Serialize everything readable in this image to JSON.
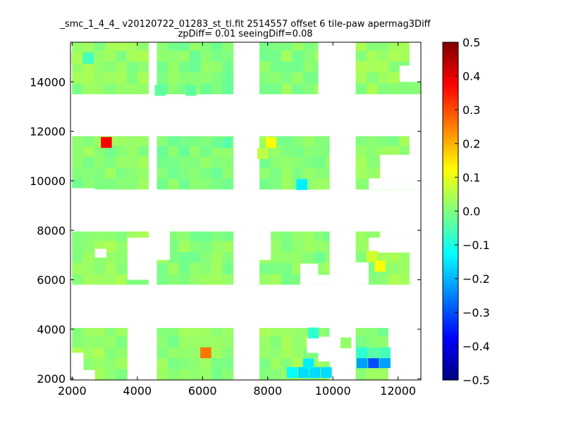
{
  "chart_data": {
    "type": "heatmap",
    "title": "_smc_1_4_4_ v20120722_01283_st_tl.fit 2514557 offset 6 tile-paw apermag3Diff",
    "subtitle": "zpDiff= 0.01 seeingDiff=0.08",
    "xlim": [
      1950,
      12700
    ],
    "ylim": [
      1950,
      15600
    ],
    "xticks": [
      "2000",
      "4000",
      "6000",
      "8000",
      "10000",
      "12000"
    ],
    "yticks": [
      "2000",
      "4000",
      "6000",
      "8000",
      "10000",
      "12000",
      "14000"
    ],
    "cell_size": [
      335,
      440
    ],
    "colorbar": {
      "range": [
        -0.5,
        0.5
      ],
      "ticks": [
        "0.5",
        "0.4",
        "0.3",
        "0.2",
        "0.1",
        "0.0",
        "−0.1",
        "−0.2",
        "−0.3",
        "−0.4",
        "−0.5"
      ],
      "colormap": "jet"
    },
    "regions": [
      {
        "x0": 2000,
        "x1": 4350,
        "y0": 13500,
        "y1": 15600,
        "value": 0.02
      },
      {
        "x0": 4600,
        "x1": 6950,
        "y0": 13500,
        "y1": 15600,
        "value": 0.0
      },
      {
        "x0": 7750,
        "x1": 9550,
        "y0": 13500,
        "y1": 15600,
        "value": 0.01
      },
      {
        "x0": 10700,
        "x1": 12700,
        "y0": 13500,
        "y1": 15600,
        "value": 0.02
      },
      {
        "x0": 2000,
        "x1": 4350,
        "y0": 9650,
        "y1": 11800,
        "value": 0.01
      },
      {
        "x0": 4600,
        "x1": 6950,
        "y0": 9650,
        "y1": 11800,
        "value": 0.0
      },
      {
        "x0": 7750,
        "x1": 9900,
        "y0": 9650,
        "y1": 11800,
        "value": 0.01
      },
      {
        "x0": 10700,
        "x1": 12700,
        "y0": 9650,
        "y1": 11800,
        "value": 0.02
      },
      {
        "x0": 2000,
        "x1": 4350,
        "y0": 5800,
        "y1": 7950,
        "value": 0.02
      },
      {
        "x0": 4600,
        "x1": 6950,
        "y0": 5800,
        "y1": 7950,
        "value": 0.01
      },
      {
        "x0": 7750,
        "x1": 9900,
        "y0": 5800,
        "y1": 7950,
        "value": 0.01
      },
      {
        "x0": 10700,
        "x1": 12700,
        "y0": 5800,
        "y1": 7950,
        "value": 0.02
      },
      {
        "x0": 2000,
        "x1": 3700,
        "y0": 1950,
        "y1": 4050,
        "value": 0.02
      },
      {
        "x0": 4600,
        "x1": 6950,
        "y0": 1950,
        "y1": 4050,
        "value": 0.01
      },
      {
        "x0": 7750,
        "x1": 9900,
        "y0": 1950,
        "y1": 4050,
        "value": 0.02
      },
      {
        "x0": 10700,
        "x1": 11700,
        "y0": 1950,
        "y1": 4050,
        "value": 0.01
      }
    ],
    "holes": [
      {
        "x0": 4350,
        "x1": 4600,
        "y0": 11100,
        "y1": 11800
      },
      {
        "x0": 2700,
        "x1": 3050,
        "y0": 6900,
        "y1": 7250
      },
      {
        "x0": 3700,
        "x1": 4350,
        "y0": 6000,
        "y1": 7700
      },
      {
        "x0": 4600,
        "x1": 5000,
        "y0": 6800,
        "y1": 7950
      },
      {
        "x0": 7750,
        "x1": 8100,
        "y0": 6800,
        "y1": 7950
      },
      {
        "x0": 9000,
        "x1": 9550,
        "y0": 5800,
        "y1": 6650
      },
      {
        "x0": 9550,
        "x1": 9900,
        "y0": 5800,
        "y1": 6200
      },
      {
        "x0": 11100,
        "x1": 12700,
        "y0": 7100,
        "y1": 7700
      },
      {
        "x0": 11450,
        "x1": 12700,
        "y0": 7700,
        "y1": 7950
      },
      {
        "x0": 10700,
        "x1": 11100,
        "y0": 5800,
        "y1": 6700
      },
      {
        "x0": 12350,
        "x1": 12700,
        "y0": 5800,
        "y1": 7100
      },
      {
        "x0": 2000,
        "x1": 2350,
        "y0": 1950,
        "y1": 3050
      },
      {
        "x0": 2000,
        "x1": 2700,
        "y0": 1950,
        "y1": 2350
      },
      {
        "x0": 3700,
        "x1": 4350,
        "y0": 1950,
        "y1": 3700
      },
      {
        "x0": 9550,
        "x1": 9900,
        "y0": 2700,
        "y1": 3700
      },
      {
        "x0": 9200,
        "x1": 9550,
        "y0": 3050,
        "y1": 3700
      },
      {
        "x0": 9900,
        "x1": 10700,
        "y0": 1950,
        "y1": 4050
      },
      {
        "x0": 11700,
        "x1": 12700,
        "y0": 1950,
        "y1": 4050
      },
      {
        "x0": 12350,
        "x1": 12700,
        "y0": 14650,
        "y1": 15600
      },
      {
        "x0": 12050,
        "x1": 12700,
        "y0": 14000,
        "y1": 14650
      },
      {
        "x0": 11100,
        "x1": 12700,
        "y0": 9650,
        "y1": 10100
      },
      {
        "x0": 11450,
        "x1": 12700,
        "y0": 10100,
        "y1": 11050
      },
      {
        "x0": 12350,
        "x1": 12700,
        "y0": 11050,
        "y1": 11800
      },
      {
        "x0": 2000,
        "x1": 2700,
        "y0": 9650,
        "y1": 9700
      }
    ],
    "highlights": [
      {
        "x": 2500,
        "y": 14950,
        "value": -0.06
      },
      {
        "x": 2150,
        "y": 14950,
        "value": 0.04
      },
      {
        "x": 3050,
        "y": 11550,
        "value": 0.38
      },
      {
        "x": 8100,
        "y": 11550,
        "value": 0.12
      },
      {
        "x": 7850,
        "y": 11100,
        "value": 0.06
      },
      {
        "x": 9050,
        "y": 9850,
        "value": -0.14
      },
      {
        "x": 11200,
        "y": 6950,
        "value": 0.08
      },
      {
        "x": 11450,
        "y": 6550,
        "value": 0.12
      },
      {
        "x": 6100,
        "y": 3050,
        "value": 0.26
      },
      {
        "x": 9400,
        "y": 3850,
        "value": -0.08
      },
      {
        "x": 8750,
        "y": 2250,
        "value": -0.12
      },
      {
        "x": 9100,
        "y": 2250,
        "value": -0.16
      },
      {
        "x": 9450,
        "y": 2250,
        "value": -0.16
      },
      {
        "x": 9800,
        "y": 2250,
        "value": -0.16
      },
      {
        "x": 9250,
        "y": 2600,
        "value": -0.14
      },
      {
        "x": 10900,
        "y": 2650,
        "value": -0.22
      },
      {
        "x": 11250,
        "y": 2650,
        "value": -0.3
      },
      {
        "x": 11600,
        "y": 2650,
        "value": -0.22
      },
      {
        "x": 10900,
        "y": 3050,
        "value": -0.08
      },
      {
        "x": 11250,
        "y": 3050,
        "value": -0.04
      },
      {
        "x": 11600,
        "y": 3050,
        "value": -0.06
      },
      {
        "x": 10400,
        "y": 3450,
        "value": 0.02
      },
      {
        "x": 4700,
        "y": 13650,
        "value": -0.03
      },
      {
        "x": 5650,
        "y": 13650,
        "value": -0.03
      },
      {
        "x": 6750,
        "y": 11550,
        "value": -0.04
      },
      {
        "x": 6450,
        "y": 11550,
        "value": -0.02
      }
    ]
  }
}
